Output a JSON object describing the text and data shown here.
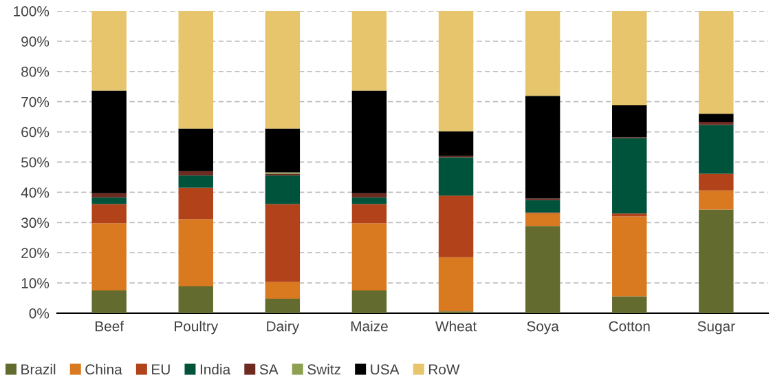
{
  "chart_data": {
    "type": "bar",
    "stacked": true,
    "categories": [
      "Beef",
      "Poultry",
      "Dairy",
      "Maize",
      "Wheat",
      "Soya",
      "Cotton",
      "Sugar"
    ],
    "series": [
      {
        "name": "Brazil",
        "color": "#636b2f",
        "values": [
          7.5,
          8.9,
          4.8,
          7.5,
          0.6,
          28.9,
          5.6,
          34.3
        ]
      },
      {
        "name": "China",
        "color": "#d97a20",
        "values": [
          22.3,
          22.2,
          5.5,
          22.3,
          17.9,
          4.1,
          26.4,
          6.3
        ]
      },
      {
        "name": "EU",
        "color": "#b2421a",
        "values": [
          6.3,
          10.4,
          25.8,
          6.3,
          20.4,
          0.3,
          1.0,
          5.5
        ]
      },
      {
        "name": "India",
        "color": "#00533b",
        "values": [
          2.2,
          4.1,
          9.5,
          2.2,
          12.7,
          4.1,
          24.9,
          16.2
        ]
      },
      {
        "name": "SA",
        "color": "#6e2a20",
        "values": [
          1.4,
          1.4,
          0.5,
          1.4,
          0.4,
          0.5,
          0.3,
          1.0
        ]
      },
      {
        "name": "Switz",
        "color": "#8da050",
        "values": [
          0,
          0,
          0.5,
          0,
          0,
          0,
          0,
          0
        ]
      },
      {
        "name": "USA",
        "color": "#000000",
        "values": [
          34,
          14.1,
          14.5,
          34,
          8.2,
          34,
          10.6,
          2.7
        ]
      },
      {
        "name": "RoW",
        "color": "#e6c56c",
        "values": [
          26.3,
          38.9,
          38.9,
          26.3,
          39.8,
          28.1,
          31.2,
          34.0
        ]
      }
    ],
    "ylim": [
      0,
      100
    ],
    "yticks": [
      {
        "value": 0,
        "label": "0%"
      },
      {
        "value": 10,
        "label": "10%"
      },
      {
        "value": 20,
        "label": "20%"
      },
      {
        "value": 30,
        "label": "30%"
      },
      {
        "value": 40,
        "label": "40%"
      },
      {
        "value": 50,
        "label": "50%"
      },
      {
        "value": 60,
        "label": "60%"
      },
      {
        "value": 70,
        "label": "70%"
      },
      {
        "value": 80,
        "label": "80%"
      },
      {
        "value": 90,
        "label": "90%"
      },
      {
        "value": 100,
        "label": "100%"
      }
    ],
    "grid": "y",
    "legend": "bottom"
  }
}
